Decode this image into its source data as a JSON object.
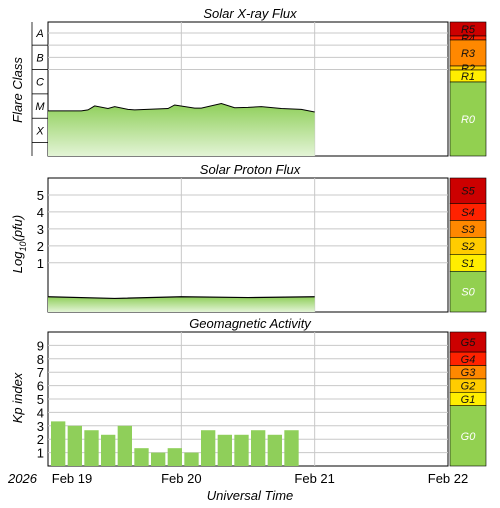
{
  "chart_data": [
    {
      "type": "area",
      "title": "Solar X-ray Flux",
      "ylabel": "Flare Class",
      "y_scale": "log",
      "y_tick_labels": [
        "A",
        "B",
        "C",
        "M",
        "X"
      ],
      "scale_labels": [
        "R5",
        "R4",
        "R3",
        "R2",
        "R1",
        "R0"
      ],
      "scale_colors": [
        "#cc0000",
        "#ff2200",
        "#ff8800",
        "#ffcc00",
        "#ffee00",
        "#92d050"
      ],
      "series": [
        {
          "x_day": [
            0,
            0.25,
            0.3,
            0.35,
            0.45,
            0.5,
            0.6,
            0.65,
            0.9,
            0.95,
            1.1,
            1.15,
            1.3,
            1.4,
            1.5,
            1.6,
            1.75,
            1.9,
            2.0
          ],
          "values": [
            "B2",
            "B2",
            "B2.2",
            "B3.2",
            "B2.5",
            "B3",
            "B2.3",
            "B2.2",
            "B2.5",
            "B3.5",
            "B2.6",
            "B2.6",
            "B4",
            "B2.7",
            "B2.8",
            "B3",
            "B2.5",
            "B2.3",
            "B1.8"
          ]
        }
      ]
    },
    {
      "type": "area",
      "title": "Solar Proton Flux",
      "ylabel": "Log10(pfu)",
      "ylabel_main": "Log",
      "ylabel_sub": "10",
      "ylabel_rest": "(pfu)",
      "y_tick_labels": [
        "5",
        "4",
        "3",
        "2",
        "1"
      ],
      "y_ticks": [
        5,
        4,
        3,
        2,
        1
      ],
      "ylim": [
        -1.9,
        6
      ],
      "scale_labels": [
        "S5",
        "S4",
        "S3",
        "S2",
        "S1",
        "S0"
      ],
      "scale_colors": [
        "#cc0000",
        "#ff2200",
        "#ff8800",
        "#ffcc00",
        "#ffee00",
        "#92d050"
      ],
      "series": [
        {
          "x_day": [
            0,
            0.5,
            1.0,
            1.5,
            2.0
          ],
          "values": [
            -1.0,
            -1.1,
            -1.0,
            -1.05,
            -1.0
          ]
        }
      ]
    },
    {
      "type": "bar",
      "title": "Geomagnetic Activity",
      "ylabel": "Kp index",
      "y_tick_labels": [
        "9",
        "8",
        "7",
        "6",
        "5",
        "4",
        "3",
        "2",
        "1"
      ],
      "y_ticks": [
        9,
        8,
        7,
        6,
        5,
        4,
        3,
        2,
        1
      ],
      "ylim": [
        0,
        10
      ],
      "scale_labels": [
        "G5",
        "G4",
        "G3",
        "G2",
        "G1",
        "G0"
      ],
      "scale_colors": [
        "#cc0000",
        "#ff2200",
        "#ff8800",
        "#ffcc00",
        "#ffee00",
        "#92d050"
      ],
      "bar_x_day": [
        0,
        0.125,
        0.25,
        0.375,
        0.5,
        0.625,
        0.75,
        0.875,
        1.0,
        1.125,
        1.25,
        1.375,
        1.5,
        1.625,
        1.75,
        1.875
      ],
      "values": [
        3.33,
        3.0,
        2.67,
        2.33,
        3.0,
        1.33,
        1.0,
        1.33,
        1.0,
        2.67,
        2.33,
        2.33,
        2.67,
        2.33,
        2.67,
        0
      ]
    }
  ],
  "x_axis": {
    "xlabel": "Universal Time",
    "year_label": "2026",
    "tick_labels": [
      "Feb 19",
      "Feb 20",
      "Feb 21",
      "Feb 22"
    ],
    "x_range_days": [
      0,
      3
    ]
  },
  "colors": {
    "fill": "#8fcf5a",
    "fill_light": "#d6efc2",
    "line": "#000000",
    "grid": "#c8c8c8"
  }
}
